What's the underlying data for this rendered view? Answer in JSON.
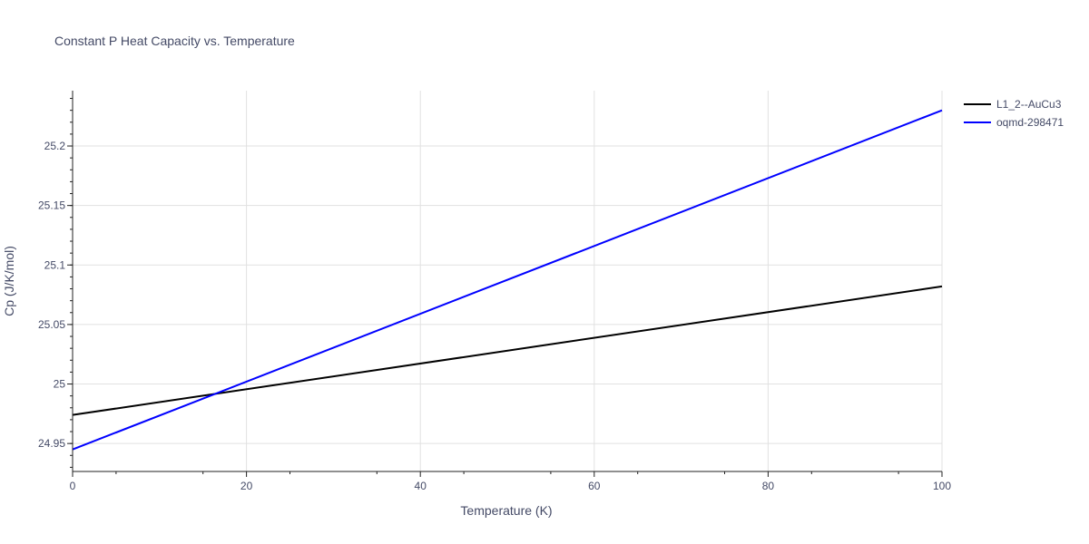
{
  "chart_data": {
    "type": "line",
    "title": "Constant P Heat Capacity vs. Temperature",
    "xlabel": "Temperature (K)",
    "ylabel": "Cp (J/K/mol)",
    "xlim": [
      0,
      100
    ],
    "ylim": [
      24.9265,
      25.2465
    ],
    "x_ticks": [
      0,
      20,
      40,
      60,
      80,
      100
    ],
    "y_ticks": [
      24.95,
      25,
      25.05,
      25.1,
      25.15,
      25.2
    ],
    "y_tick_labels": [
      "24.95",
      "25",
      "25.05",
      "25.1",
      "25.15",
      "25.2"
    ],
    "grid": true,
    "legend_position": "top-right",
    "series": [
      {
        "name": "L1_2--AuCu3",
        "color": "#000000",
        "x": [
          0,
          100
        ],
        "y": [
          24.974,
          25.082
        ]
      },
      {
        "name": "oqmd-298471",
        "color": "#0000ff",
        "x": [
          0,
          100
        ],
        "y": [
          24.945,
          25.23
        ]
      }
    ]
  }
}
